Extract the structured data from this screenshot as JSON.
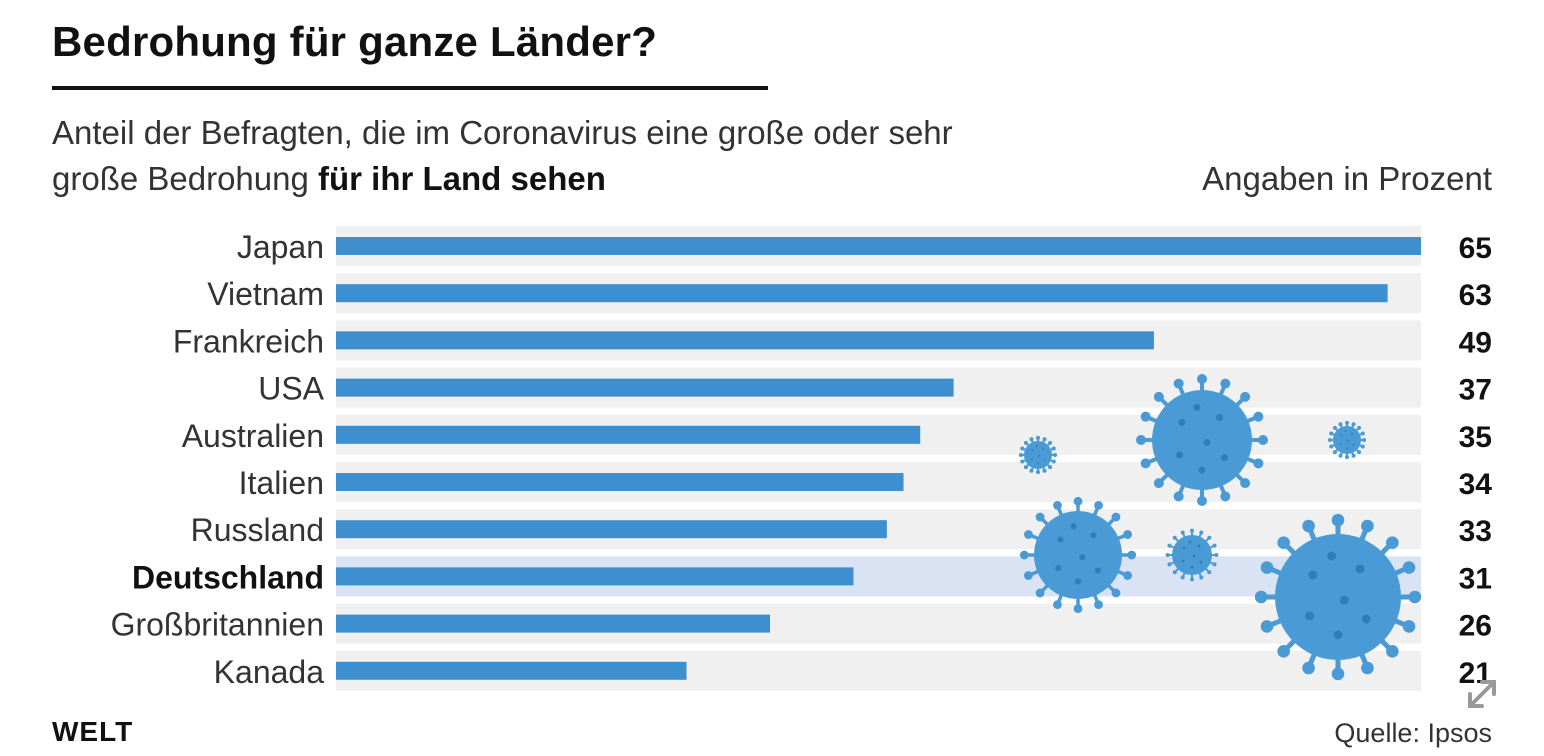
{
  "header": {
    "title": "Bedrohung für ganze Länder?",
    "subtitle_line1": "Anteil der Befragten, die im Coronavirus eine große oder sehr",
    "subtitle_line2_prefix": "große Bedrohung ",
    "subtitle_line2_bold": "für ihr Land sehen",
    "units": "Angaben in Prozent"
  },
  "footer": {
    "logo": "WELT",
    "source": "Quelle: Ipsos"
  },
  "colors": {
    "bar": "#3d8fcf",
    "row_background": "#f0f0f0",
    "highlight_row": "#d9e3f3",
    "virus": "#4a9ad6"
  },
  "icons": [
    "virus-icon",
    "expand-icon"
  ],
  "chart_data": {
    "type": "bar",
    "orientation": "horizontal",
    "title": "Bedrohung für ganze Länder?",
    "subtitle": "Anteil der Befragten, die im Coronavirus eine große oder sehr große Bedrohung für ihr Land sehen",
    "unit": "Angaben in Prozent",
    "categories": [
      "Japan",
      "Vietnam",
      "Frankreich",
      "USA",
      "Australien",
      "Italien",
      "Russland",
      "Deutschland",
      "Großbritannien",
      "Kanada"
    ],
    "values": [
      65,
      63,
      49,
      37,
      35,
      34,
      33,
      31,
      26,
      21
    ],
    "highlight": "Deutschland",
    "xlim": [
      0,
      65
    ],
    "grid": false,
    "legend": "none"
  }
}
